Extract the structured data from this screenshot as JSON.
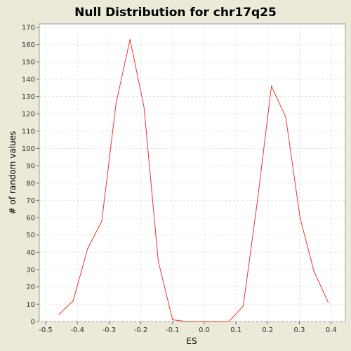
{
  "chart_data": {
    "type": "line",
    "title": "Null Distribution for chr17q25",
    "xlabel": "ES",
    "ylabel": "# of random values",
    "xlim": [
      -0.52,
      0.445
    ],
    "ylim": [
      0,
      172
    ],
    "xticks": [
      "-0.5",
      "-0.4",
      "-0.3",
      "-0.2",
      "-0.1",
      "0.0",
      "0.1",
      "0.2",
      "0.3",
      "0.4"
    ],
    "yticks": [
      "0",
      "10",
      "20",
      "30",
      "40",
      "50",
      "60",
      "70",
      "80",
      "90",
      "100",
      "110",
      "120",
      "130",
      "140",
      "150",
      "160",
      "170"
    ],
    "grid": true,
    "series": [
      {
        "color": "#ee3333",
        "x": [
          -0.458,
          -0.413,
          -0.368,
          -0.323,
          -0.278,
          -0.234,
          -0.19,
          -0.145,
          -0.1,
          -0.056,
          -0.011,
          0.034,
          0.078,
          0.123,
          0.168,
          0.212,
          0.257,
          0.302,
          0.346,
          0.391
        ],
        "y": [
          4,
          12,
          42,
          58,
          126,
          163,
          124,
          35,
          1,
          0,
          0,
          0,
          0,
          9,
          70,
          136,
          118,
          60,
          29,
          11
        ]
      }
    ]
  },
  "colors": {
    "background": "#ece9d8",
    "plot_background": "#ffffff",
    "grid": "#e4e4e4",
    "line": "#ee3333"
  }
}
